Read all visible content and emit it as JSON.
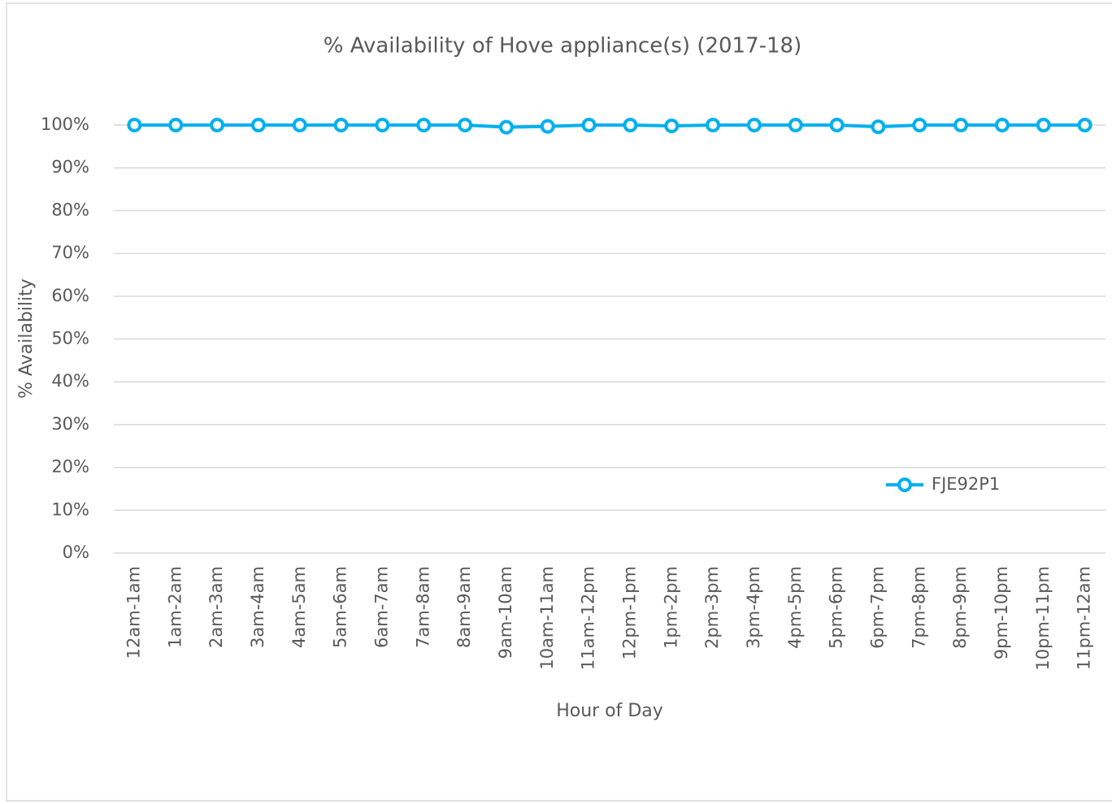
{
  "chart_data": {
    "type": "line",
    "title": "% Availability of Hove appliance(s) (2017-18)",
    "x_label": "Hour of Day",
    "y_label": "% Availability",
    "categories": [
      "12am-1am",
      "1am-2am",
      "2am-3am",
      "3am-4am",
      "4am-5am",
      "5am-6am",
      "6am-7am",
      "7am-8am",
      "8am-9am",
      "9am-10am",
      "10am-11am",
      "11am-12pm",
      "12pm-1pm",
      "1pm-2pm",
      "2pm-3pm",
      "3pm-4pm",
      "4pm-5pm",
      "5pm-6pm",
      "6pm-7pm",
      "7pm-8pm",
      "8pm-9pm",
      "9pm-10pm",
      "10pm-11pm",
      "11pm-12am"
    ],
    "series": [
      {
        "name": "FJE92P1",
        "color": "#00b0f0",
        "values": [
          100,
          100,
          100,
          100,
          100,
          100,
          100,
          100,
          100,
          99.5,
          99.7,
          100,
          100,
          99.8,
          100,
          100,
          100,
          100,
          99.6,
          100,
          100,
          100,
          100,
          100
        ]
      }
    ],
    "ylim": [
      0,
      100
    ],
    "yticks": [
      {
        "value": 0,
        "label": "0%"
      },
      {
        "value": 10,
        "label": "10%"
      },
      {
        "value": 20,
        "label": "20%"
      },
      {
        "value": 30,
        "label": "30%"
      },
      {
        "value": 40,
        "label": "40%"
      },
      {
        "value": 50,
        "label": "50%"
      },
      {
        "value": 60,
        "label": "60%"
      },
      {
        "value": 70,
        "label": "70%"
      },
      {
        "value": 80,
        "label": "80%"
      },
      {
        "value": 90,
        "label": "90%"
      },
      {
        "value": 100,
        "label": "100%"
      }
    ],
    "grid": true,
    "legend": "lower right"
  }
}
